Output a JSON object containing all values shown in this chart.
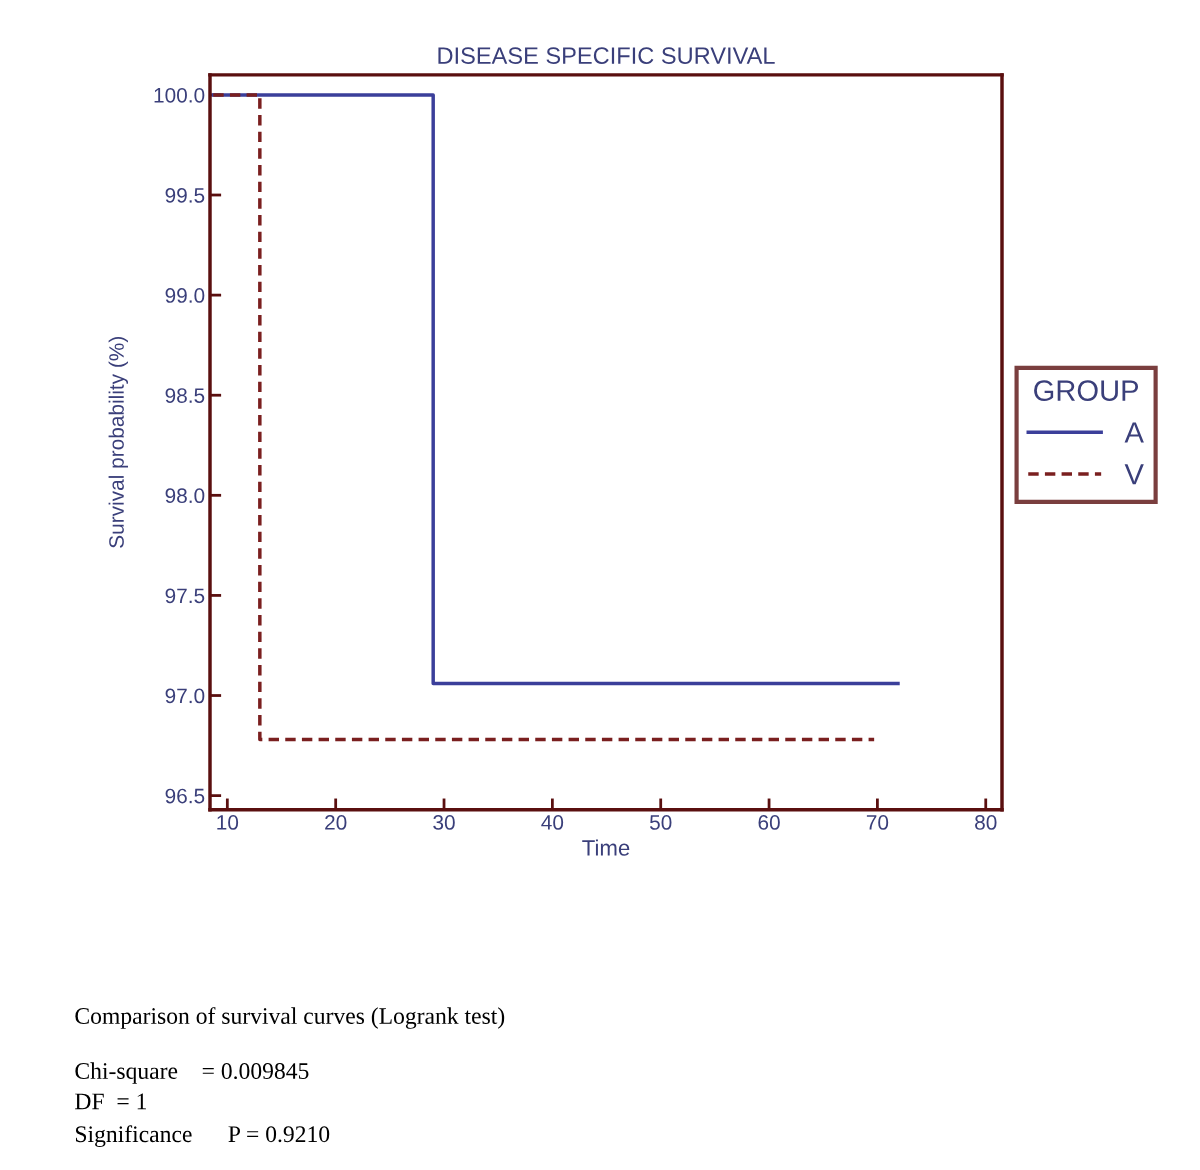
{
  "chart_data": {
    "type": "step",
    "title": "DISEASE SPECIFIC SURVIVAL",
    "xlabel": "Time",
    "ylabel": "Survival probability (%)",
    "legend_title": "GROUP",
    "series": [
      {
        "name": "A",
        "color": "#3b3f9a",
        "line_style": "solid",
        "x": [
          8.7,
          29.0,
          71.9
        ],
        "values": [
          100.0,
          97.06,
          97.06
        ]
      },
      {
        "name": "V",
        "color": "#7a1f1f",
        "line_style": "dashed",
        "x": [
          8.7,
          13.0,
          69.7
        ],
        "values": [
          100.0,
          96.78,
          96.78
        ]
      }
    ],
    "xlim": [
      8.4,
      81.5
    ],
    "xticks": [
      10,
      20,
      30,
      40,
      50,
      60,
      70,
      80
    ],
    "ylim": [
      96.43,
      100.1
    ],
    "yticks": [
      {
        "value": 96.5,
        "label": "96.5"
      },
      {
        "value": 97.0,
        "label": "97.0"
      },
      {
        "value": 97.5,
        "label": "97.5"
      },
      {
        "value": 98.0,
        "label": "98.0"
      },
      {
        "value": 98.5,
        "label": "98.5"
      },
      {
        "value": 99.0,
        "label": "99.0"
      },
      {
        "value": 99.5,
        "label": "99.5"
      },
      {
        "value": 100.0,
        "label": "100.0"
      }
    ],
    "grid": false,
    "legend": "right",
    "marker": "none",
    "annotations": [
      "Comparison of survival curves (Logrank test)",
      "Chi-square    = 0.009845",
      "DF  = 1",
      "Significance      P = 0.9210"
    ]
  }
}
